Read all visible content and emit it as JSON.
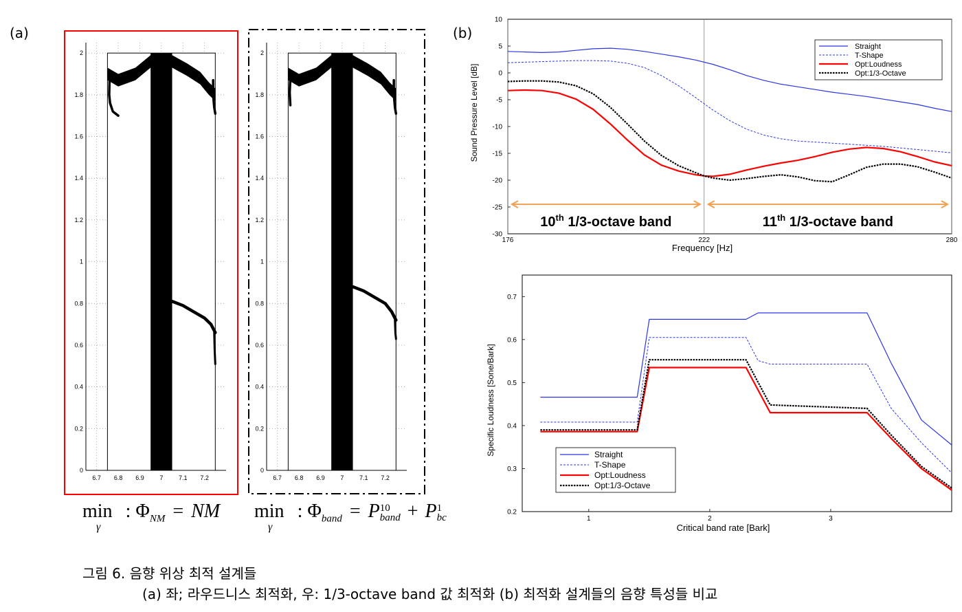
{
  "panel_labels": {
    "a": "(a)",
    "b": "(b)"
  },
  "formulas": {
    "left": {
      "min": "min",
      "sub": "γ",
      "colon": ":",
      "phi": "Φ",
      "phi_sub": "NM",
      "eq": "=",
      "rhs": "NM"
    },
    "right": {
      "min": "min",
      "sub": "γ",
      "colon": ":",
      "phi": "Φ",
      "phi_sub": "band",
      "eq": "=",
      "p": "P",
      "p_sup": "10",
      "p_sub": "band",
      "plus": "+",
      "p2": "P",
      "p2_sup": "1",
      "p2_sub": "bc"
    }
  },
  "caption": {
    "line1": "그림 6. 음향 위상 최적 설계들",
    "line2": "(a) 좌; 라우드니스 최적화, 우: 1/3-octave band 값 최적화 (b) 최적화 설계들의 음향 특성들 비교"
  },
  "colors": {
    "blue": "#2b35e6",
    "red": "#ff0000",
    "black": "#000000",
    "orange": "#f0a050",
    "grid": "#888888"
  },
  "chart_data": [
    {
      "type": "image",
      "name": "topology-loudness",
      "frame_style": "solid-red",
      "frame_color": "#ff0000",
      "xlim": [
        6.65,
        7.3
      ],
      "ylim": [
        0,
        2.05
      ],
      "x_ticks": [
        6.7,
        6.8,
        6.9,
        7,
        7.1,
        7.2
      ],
      "y_ticks": [
        0,
        0.2,
        0.4,
        0.6,
        0.8,
        1,
        1.2,
        1.4,
        1.6,
        1.8,
        2
      ],
      "x_tick_labels": [
        "6.7",
        "6.8",
        "6.9",
        "7",
        "7.1",
        "7.2"
      ],
      "y_tick_labels": [
        "0",
        "0.2",
        "0.4",
        "0.6",
        "0.8",
        "1",
        "1.2",
        "1.4",
        "1.6",
        "1.8",
        "2"
      ],
      "domain_x": [
        6.75,
        7.25
      ],
      "domain_y": [
        0,
        2
      ],
      "stem_x": [
        6.95,
        7.05
      ],
      "arch_top": {
        "x": [
          6.75,
          6.8,
          6.88,
          6.95,
          7.05,
          7.12,
          7.18,
          7.22,
          7.25
        ],
        "y": [
          1.93,
          1.9,
          1.93,
          1.99,
          1.99,
          1.95,
          1.91,
          1.86,
          1.83
        ]
      },
      "arch_thickness": 0.06,
      "left_drop": {
        "x": [
          6.76,
          6.758,
          6.762,
          6.775,
          6.8
        ],
        "y": [
          1.88,
          1.8,
          1.76,
          1.72,
          1.7
        ]
      },
      "right_drop": {
        "x": [
          7.24,
          7.24,
          7.245,
          7.25
        ],
        "y": [
          1.87,
          1.8,
          1.74,
          1.71
        ]
      },
      "lower_branch": {
        "x": [
          7.05,
          7.1,
          7.15,
          7.2,
          7.23,
          7.25
        ],
        "y": [
          0.81,
          0.79,
          0.76,
          0.73,
          0.7,
          0.66
        ]
      },
      "lower_tail": {
        "x": [
          7.245,
          7.247,
          7.25
        ],
        "y": [
          0.66,
          0.58,
          0.51
        ]
      }
    },
    {
      "type": "image",
      "name": "topology-octave",
      "frame_style": "dash-dot-black",
      "frame_color": "#000000",
      "xlim": [
        6.65,
        7.3
      ],
      "ylim": [
        0,
        2.05
      ],
      "x_ticks": [
        6.7,
        6.8,
        6.9,
        7,
        7.1,
        7.2
      ],
      "y_ticks": [
        0,
        0.2,
        0.4,
        0.6,
        0.8,
        1,
        1.2,
        1.4,
        1.6,
        1.8,
        2
      ],
      "x_tick_labels": [
        "6.7",
        "6.8",
        "6.9",
        "7",
        "7.1",
        "7.2"
      ],
      "y_tick_labels": [
        "0",
        "0.2",
        "0.4",
        "0.6",
        "0.8",
        "1",
        "1.2",
        "1.4",
        "1.6",
        "1.8",
        "2"
      ],
      "domain_x": [
        6.75,
        7.25
      ],
      "domain_y": [
        0,
        2
      ],
      "stem_x": [
        6.95,
        7.05
      ],
      "arch_top": {
        "x": [
          6.75,
          6.8,
          6.88,
          6.95,
          7.05,
          7.12,
          7.18,
          7.22,
          7.25
        ],
        "y": [
          1.93,
          1.9,
          1.93,
          1.99,
          1.99,
          1.95,
          1.91,
          1.86,
          1.83
        ]
      },
      "arch_thickness": 0.06,
      "left_drop": {
        "x": [
          6.76,
          6.757,
          6.76
        ],
        "y": [
          1.88,
          1.81,
          1.75
        ]
      },
      "right_drop": {
        "x": [
          7.24,
          7.24,
          7.245,
          7.25
        ],
        "y": [
          1.87,
          1.8,
          1.74,
          1.71
        ]
      },
      "lower_branch": {
        "x": [
          7.05,
          7.1,
          7.15,
          7.2,
          7.23,
          7.25
        ],
        "y": [
          0.88,
          0.86,
          0.83,
          0.8,
          0.76,
          0.72
        ]
      },
      "lower_tail": {
        "x": [
          7.245,
          7.247,
          7.25
        ],
        "y": [
          0.72,
          0.66,
          0.63
        ]
      }
    },
    {
      "type": "line",
      "name": "spl",
      "xlabel": "Frequency [Hz]",
      "ylabel": "Sound Pressure Level [dB]",
      "xlim": [
        176,
        280
      ],
      "ylim": [
        -30,
        10
      ],
      "x_ticks": [
        176,
        222,
        280
      ],
      "x_tick_labels": [
        "176",
        "222",
        "280"
      ],
      "y_ticks": [
        10,
        5,
        0,
        -5,
        -10,
        -15,
        -20,
        -25,
        -30
      ],
      "y_tick_labels": [
        "10",
        "5",
        "0",
        "-5",
        "-10",
        "-15",
        "-20",
        "-25",
        "-30"
      ],
      "grid_x": [
        176,
        222,
        280
      ],
      "legend": "top-right",
      "series": [
        {
          "name": "Straight",
          "style": "blue-solid",
          "x": [
            176,
            180,
            184,
            188,
            192,
            196,
            200,
            204,
            208,
            212,
            216,
            220,
            224,
            228,
            232,
            236,
            240,
            244,
            248,
            252,
            256,
            260,
            264,
            268,
            272,
            276,
            280
          ],
          "y": [
            4.0,
            3.9,
            3.8,
            3.9,
            4.2,
            4.5,
            4.6,
            4.4,
            4.0,
            3.5,
            3.0,
            2.4,
            1.6,
            0.6,
            -0.5,
            -1.4,
            -2.1,
            -2.6,
            -3.1,
            -3.6,
            -4.0,
            -4.4,
            -4.9,
            -5.4,
            -5.9,
            -6.6,
            -7.2
          ]
        },
        {
          "name": "T-Shape",
          "style": "blue-dashed",
          "x": [
            176,
            180,
            184,
            188,
            192,
            196,
            200,
            204,
            208,
            212,
            216,
            220,
            224,
            228,
            232,
            236,
            240,
            244,
            248,
            252,
            256,
            260,
            264,
            268,
            272,
            276,
            280
          ],
          "y": [
            1.9,
            2.0,
            2.1,
            2.2,
            2.3,
            2.3,
            2.2,
            1.8,
            1.0,
            -0.5,
            -2.4,
            -4.6,
            -6.9,
            -8.9,
            -10.5,
            -11.6,
            -12.3,
            -12.7,
            -12.9,
            -13.1,
            -13.3,
            -13.5,
            -13.7,
            -14.0,
            -14.3,
            -14.6,
            -14.9
          ]
        },
        {
          "name": "Opt:Loudness",
          "style": "red-solid-thick",
          "x": [
            176,
            180,
            184,
            188,
            192,
            196,
            200,
            204,
            208,
            212,
            216,
            220,
            222,
            224,
            228,
            232,
            236,
            240,
            244,
            248,
            252,
            256,
            260,
            264,
            268,
            272,
            276,
            280
          ],
          "y": [
            -3.3,
            -3.2,
            -3.3,
            -3.8,
            -4.9,
            -6.8,
            -9.5,
            -12.5,
            -15.3,
            -17.2,
            -18.3,
            -19.0,
            -19.2,
            -19.3,
            -18.9,
            -18.1,
            -17.4,
            -16.8,
            -16.3,
            -15.6,
            -14.8,
            -14.2,
            -13.9,
            -14.1,
            -14.7,
            -15.6,
            -16.6,
            -17.3
          ]
        },
        {
          "name": "Opt:1/3-Octave",
          "style": "black-dotted-thick",
          "x": [
            176,
            180,
            184,
            188,
            192,
            196,
            200,
            204,
            208,
            212,
            216,
            220,
            222,
            224,
            228,
            232,
            236,
            240,
            244,
            248,
            252,
            256,
            260,
            264,
            268,
            272,
            276,
            280
          ],
          "y": [
            -1.6,
            -1.5,
            -1.5,
            -1.7,
            -2.4,
            -3.9,
            -6.4,
            -9.5,
            -12.7,
            -15.4,
            -17.3,
            -18.6,
            -19.2,
            -19.6,
            -20.0,
            -19.7,
            -19.3,
            -19.0,
            -19.4,
            -20.1,
            -20.3,
            -19.0,
            -17.6,
            -17.0,
            -17.0,
            -17.5,
            -18.5,
            -19.6
          ]
        }
      ],
      "annotations": [
        {
          "text_main": "10",
          "text_sup": "th",
          "text_rest": " 1/3-octave band",
          "x_from": 176,
          "x_to": 222,
          "y": -24.5
        },
        {
          "text_main": "11",
          "text_sup": "th",
          "text_rest": " 1/3-octave band",
          "x_from": 222,
          "x_to": 280,
          "y": -24.5
        }
      ]
    },
    {
      "type": "line",
      "name": "specific-loudness",
      "xlabel": "Critical band rate [Bark]",
      "ylabel": "Specific Loudness [Sone/Bark]",
      "xlim": [
        0.45,
        4.0
      ],
      "ylim": [
        0.2,
        0.75
      ],
      "x_ticks": [
        1,
        2,
        3
      ],
      "x_tick_labels": [
        "1",
        "2",
        "3"
      ],
      "y_ticks": [
        0.2,
        0.3,
        0.4,
        0.5,
        0.6,
        0.7
      ],
      "y_tick_labels": [
        "0.2",
        "0.3",
        "0.4",
        "0.5",
        "0.6",
        "0.7"
      ],
      "legend": "bottom-left",
      "series": [
        {
          "name": "Straight",
          "style": "blue-solid",
          "x": [
            0.6,
            1.4,
            1.5,
            2.3,
            2.4,
            3.3,
            3.5,
            3.75,
            4.0
          ],
          "y": [
            0.466,
            0.466,
            0.647,
            0.647,
            0.662,
            0.662,
            0.545,
            0.413,
            0.355
          ]
        },
        {
          "name": "T-Shape",
          "style": "blue-dashed",
          "x": [
            0.6,
            1.4,
            1.5,
            2.3,
            2.4,
            2.5,
            3.3,
            3.5,
            3.75,
            4.0
          ],
          "y": [
            0.408,
            0.408,
            0.605,
            0.605,
            0.551,
            0.543,
            0.543,
            0.44,
            0.36,
            0.29
          ]
        },
        {
          "name": "Opt:Loudness",
          "style": "red-solid-thick",
          "x": [
            0.6,
            1.4,
            1.5,
            2.3,
            2.5,
            3.3,
            3.5,
            3.75,
            4.0
          ],
          "y": [
            0.386,
            0.386,
            0.535,
            0.535,
            0.43,
            0.43,
            0.37,
            0.3,
            0.25
          ]
        },
        {
          "name": "Opt:1/3-Octave",
          "style": "black-dotted-thick",
          "x": [
            0.6,
            1.4,
            1.5,
            2.3,
            2.5,
            3.3,
            3.5,
            3.75,
            4.0
          ],
          "y": [
            0.39,
            0.39,
            0.553,
            0.553,
            0.448,
            0.44,
            0.378,
            0.305,
            0.255
          ]
        }
      ]
    }
  ]
}
